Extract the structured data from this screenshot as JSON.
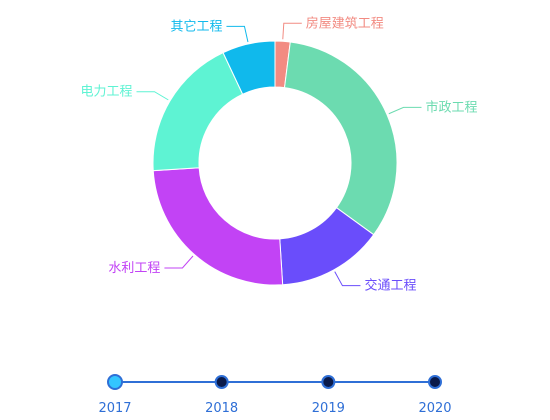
{
  "chart_data": {
    "type": "pie",
    "variant": "donut",
    "categories": [
      "房屋建筑工程",
      "市政工程",
      "交通工程",
      "水利工程",
      "电力工程",
      "其它工程"
    ],
    "values": [
      2,
      33,
      14,
      25,
      19,
      7
    ],
    "colors": [
      "#f28b82",
      "#6cdbb0",
      "#6a4dfb",
      "#c243f5",
      "#5ef3d3",
      "#10b9ec"
    ]
  },
  "timeline": {
    "years": [
      "2017",
      "2018",
      "2019",
      "2020"
    ],
    "active_index": 0,
    "line_color": "#2f6fd6",
    "active_color": "#33c6ff",
    "inactive_color": "#0a1a4a"
  }
}
